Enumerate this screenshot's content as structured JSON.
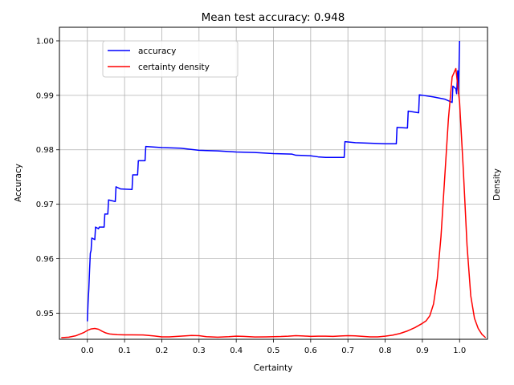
{
  "chart_data": {
    "type": "line",
    "title": "Mean test accuracy: 0.948",
    "xlabel": "Certainty",
    "ylabel": "Accuracy",
    "y2label": "Density",
    "xlim": [
      -0.075,
      1.075
    ],
    "ylim": [
      0.9452,
      1.0025
    ],
    "xticks": [
      0.0,
      0.1,
      0.2,
      0.3,
      0.4,
      0.5,
      0.6,
      0.7,
      0.8,
      0.9,
      1.0
    ],
    "xtick_labels": [
      "0.0",
      "0.1",
      "0.2",
      "0.3",
      "0.4",
      "0.5",
      "0.6",
      "0.7",
      "0.8",
      "0.9",
      "1.0"
    ],
    "yticks": [
      0.95,
      0.96,
      0.97,
      0.98,
      0.99,
      1.0
    ],
    "ytick_labels": [
      "0.95",
      "0.96",
      "0.97",
      "0.98",
      "0.99",
      "1.00"
    ],
    "grid": true,
    "legend_position": "upper-left",
    "series": [
      {
        "name": "accuracy",
        "color": "#0000ff",
        "x": [
          0.0,
          0.002,
          0.004,
          0.006,
          0.008,
          0.01,
          0.012,
          0.02,
          0.022,
          0.03,
          0.032,
          0.045,
          0.047,
          0.055,
          0.057,
          0.075,
          0.077,
          0.09,
          0.092,
          0.12,
          0.122,
          0.135,
          0.137,
          0.155,
          0.157,
          0.2,
          0.25,
          0.3,
          0.35,
          0.4,
          0.45,
          0.5,
          0.55,
          0.56,
          0.6,
          0.62,
          0.64,
          0.69,
          0.692,
          0.72,
          0.8,
          0.83,
          0.832,
          0.86,
          0.862,
          0.89,
          0.892,
          0.93,
          0.96,
          0.98,
          0.982,
          0.99,
          0.992,
          0.995,
          0.997,
          1.0
        ],
        "y": [
          0.9485,
          0.952,
          0.9545,
          0.958,
          0.961,
          0.9615,
          0.9638,
          0.9635,
          0.9658,
          0.9655,
          0.9658,
          0.9658,
          0.9682,
          0.9682,
          0.9708,
          0.9705,
          0.9732,
          0.9728,
          0.9728,
          0.9727,
          0.9754,
          0.9754,
          0.978,
          0.978,
          0.9806,
          0.9804,
          0.9803,
          0.9799,
          0.9798,
          0.9796,
          0.9795,
          0.9793,
          0.9792,
          0.979,
          0.9789,
          0.9787,
          0.9786,
          0.9786,
          0.9815,
          0.9813,
          0.9811,
          0.9811,
          0.9841,
          0.984,
          0.9871,
          0.9868,
          0.9901,
          0.9897,
          0.9893,
          0.9887,
          0.9917,
          0.9912,
          0.9903,
          0.9945,
          0.9903,
          1.0
        ]
      },
      {
        "name": "certainty density",
        "color": "#ff0000",
        "x": [
          -0.07,
          -0.05,
          -0.03,
          -0.01,
          0.0,
          0.01,
          0.02,
          0.03,
          0.04,
          0.05,
          0.06,
          0.08,
          0.1,
          0.12,
          0.15,
          0.18,
          0.2,
          0.22,
          0.25,
          0.28,
          0.3,
          0.32,
          0.35,
          0.38,
          0.4,
          0.42,
          0.45,
          0.48,
          0.5,
          0.52,
          0.54,
          0.56,
          0.58,
          0.6,
          0.62,
          0.64,
          0.66,
          0.68,
          0.7,
          0.72,
          0.74,
          0.76,
          0.78,
          0.8,
          0.82,
          0.84,
          0.86,
          0.88,
          0.9,
          0.91,
          0.92,
          0.93,
          0.94,
          0.95,
          0.96,
          0.97,
          0.98,
          0.99,
          1.0,
          1.01,
          1.02,
          1.03,
          1.04,
          1.05,
          1.06,
          1.07
        ],
        "y": [
          0.0,
          0.0003,
          0.0012,
          0.003,
          0.0043,
          0.0052,
          0.0055,
          0.005,
          0.0038,
          0.0028,
          0.0022,
          0.0018,
          0.0017,
          0.0017,
          0.0016,
          0.001,
          0.0005,
          0.0005,
          0.0009,
          0.0013,
          0.0012,
          0.0006,
          0.0003,
          0.0006,
          0.0009,
          0.0008,
          0.0004,
          0.0005,
          0.0006,
          0.0007,
          0.0009,
          0.0012,
          0.001,
          0.0008,
          0.0009,
          0.0009,
          0.0008,
          0.001,
          0.0012,
          0.0011,
          0.0008,
          0.0005,
          0.0005,
          0.0009,
          0.0015,
          0.0025,
          0.004,
          0.006,
          0.0085,
          0.01,
          0.013,
          0.02,
          0.035,
          0.06,
          0.095,
          0.13,
          0.155,
          0.16,
          0.14,
          0.1,
          0.055,
          0.025,
          0.0115,
          0.0055,
          0.002,
          0.0
        ],
        "ymax": 0.1855
      }
    ]
  }
}
